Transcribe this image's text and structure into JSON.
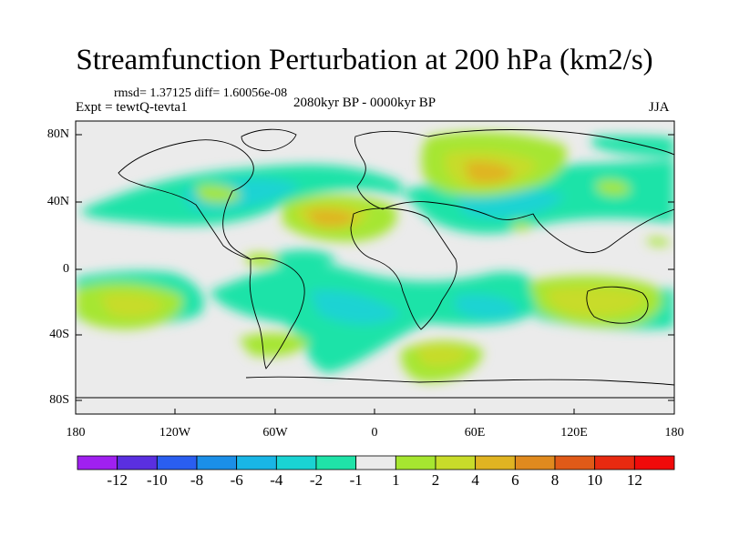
{
  "title": "Streamfunction Perturbation at 200 hPa (km2/s)",
  "stats": "rmsd= 1.37125  diff= 1.60056e-08",
  "experiment": "Expt = tewtQ-tevta1",
  "period": "2080kyr BP - 0000kyr BP",
  "season": "JJA",
  "lat_labels": [
    "80N",
    "40N",
    "0",
    "40S",
    "80S"
  ],
  "lon_labels": [
    "180",
    "120W",
    "60W",
    "0",
    "60E",
    "120E",
    "180"
  ],
  "colorbar": {
    "labels": [
      "-12",
      "-10",
      "-8",
      "-6",
      "-4",
      "-2",
      "-1",
      "1",
      "2",
      "4",
      "6",
      "8",
      "10",
      "12"
    ],
    "colors": [
      "#a020f0",
      "#5a2fe0",
      "#2a5ef0",
      "#1b8fe8",
      "#19b6e6",
      "#1ad3d3",
      "#1fe3a8",
      "#ebebeb",
      "#a6e630",
      "#c8dc2a",
      "#e0b422",
      "#e08a1e",
      "#e05a18",
      "#e82a10",
      "#f00a0a"
    ]
  }
}
